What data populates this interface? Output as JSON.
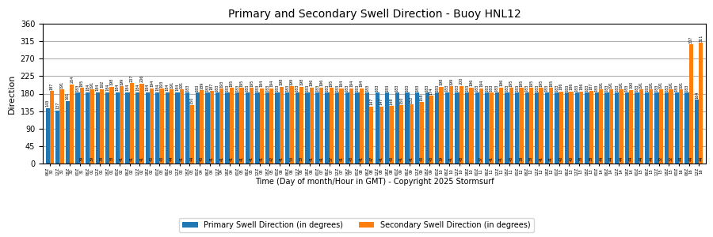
{
  "chart_data": {
    "type": "bar",
    "title": "Primary and Secondary Swell Direction - Buoy HNL12",
    "x_label": "Time (Day of month/Hour in GMT) - Copyright 2025 Stormsurf",
    "y_label": "Direction",
    "categories": [
      "06Z\n30",
      "12Z\n30",
      "18Z\n30",
      "00Z\n31",
      "06Z\n01",
      "12Z\n01",
      "18Z\n01",
      "00Z\n02",
      "06Z\n02",
      "12Z\n02",
      "18Z\n02",
      "00Z\n03",
      "06Z\n03",
      "12Z\n03",
      "18Z\n03",
      "00Z\n04",
      "06Z\n04",
      "12Z\n04",
      "18Z\n04",
      "00Z\n05",
      "06Z\n05",
      "12Z\n05",
      "18Z\n05",
      "00Z\n06",
      "06Z\n06",
      "12Z\n06",
      "18Z\n06",
      "00Z\n07",
      "06Z\n07",
      "12Z\n07",
      "18Z\n07",
      "00Z\n08",
      "06Z\n08",
      "12Z\n08",
      "18Z\n08",
      "00Z\n09",
      "06Z\n09",
      "12Z\n09",
      "18Z\n09",
      "00Z\n10",
      "06Z\n10",
      "12Z\n10",
      "18Z\n10",
      "00Z\n11",
      "06Z\n11",
      "12Z\n11",
      "18Z\n11",
      "00Z\n12",
      "06Z\n12",
      "12Z\n12",
      "18Z\n12",
      "00Z\n13",
      "06Z\n13",
      "12Z\n13",
      "18Z\n13",
      "00Z\n14",
      "06Z\n14",
      "12Z\n14",
      "18Z\n14",
      "00Z\n15",
      "06Z\n15",
      "12Z\n15",
      "18Z\n15",
      "00Z\n16",
      "06Z\n16",
      "12Z\n16"
    ],
    "series": [
      {
        "name": "Primary Swell Direction (in degrees)",
        "values": [
          143,
          137,
          161,
          183,
          184,
          184,
          184,
          184,
          184,
          184,
          184,
          184,
          184,
          184,
          183,
          183,
          183,
          183,
          183,
          183,
          183,
          183,
          183,
          183,
          183,
          183,
          183,
          183,
          183,
          183,
          183,
          183,
          183,
          183,
          183,
          183,
          183,
          183,
          183,
          183,
          183,
          183,
          183,
          183,
          183,
          183,
          183,
          183,
          183,
          183,
          183,
          183,
          183,
          183,
          183,
          183,
          183,
          183,
          183,
          183,
          183,
          183,
          183,
          183,
          183,
          164
        ]
      },
      {
        "name": "Secondary Swell Direction (in degrees)",
        "values": [
          187,
          191,
          204,
          195,
          191,
          192,
          198,
          199,
          207,
          206,
          194,
          193,
          191,
          191,
          150,
          189,
          187,
          193,
          195,
          195,
          195,
          194,
          194,
          198,
          199,
          198,
          196,
          196,
          195,
          194,
          194,
          194,
          147,
          147,
          148,
          150,
          152,
          158,
          174,
          198,
          199,
          200,
          196,
          194,
          183,
          196,
          195,
          195,
          195,
          195,
          195,
          186,
          186,
          186,
          187,
          191,
          191,
          191,
          190,
          191,
          191,
          191,
          191,
          191,
          307,
          311
        ],
        "bottom_labels": [
          null,
          null,
          null,
          39,
          39,
          38,
          38,
          41,
          41,
          41,
          40,
          43,
          44,
          41,
          44,
          40,
          41,
          41,
          41,
          41,
          41,
          41,
          42,
          41,
          53,
          33,
          41,
          41,
          57,
          41,
          43,
          41,
          47,
          41,
          43,
          41,
          41,
          43,
          43,
          39,
          41,
          43,
          null,
          37,
          41,
          41,
          43,
          38,
          38,
          41,
          41,
          40,
          40,
          38,
          38,
          44,
          44,
          44,
          44,
          44,
          44,
          32,
          32,
          44,
          44,
          44
        ]
      }
    ],
    "ylim": [
      0,
      360
    ],
    "yticks": [
      0,
      45,
      90,
      135,
      180,
      225,
      270,
      315,
      360
    ],
    "grid": "y",
    "legend": "lower center",
    "data_labels": true
  }
}
